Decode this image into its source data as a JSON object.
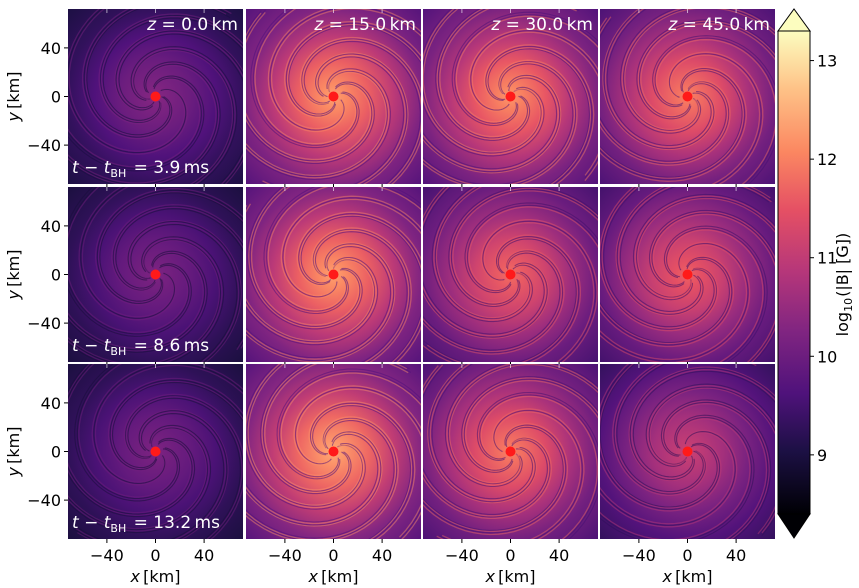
{
  "chart_data": {
    "type": "heatmap",
    "description_grid": "3x4 panels of magnetic field strength maps",
    "x_axis": {
      "label_var": "x",
      "label_unit": "[km]",
      "ticks": [
        -40,
        0,
        40
      ],
      "range": [
        -72,
        72
      ]
    },
    "y_axis": {
      "label_var": "y",
      "label_unit": "[km]",
      "ticks": [
        40,
        0,
        -40
      ],
      "range": [
        -72,
        72
      ]
    },
    "columns": [
      {
        "z_label": "z = 0.0 km",
        "z_value": 0.0
      },
      {
        "z_label": "z = 15.0 km",
        "z_value": 15.0
      },
      {
        "z_label": "z = 30.0 km",
        "z_value": 30.0
      },
      {
        "z_label": "z = 45.0 km",
        "z_value": 45.0
      }
    ],
    "rows": [
      {
        "t_label": "t − t_BH = 3.9 ms",
        "t_value": 3.9
      },
      {
        "t_label": "t − t_BH = 8.6 ms",
        "t_value": 8.6
      },
      {
        "t_label": "t − t_BH = 13.2 ms",
        "t_value": 13.2
      }
    ],
    "panel_brightness": [
      [
        0.35,
        0.72,
        0.7,
        0.66
      ],
      [
        0.33,
        0.72,
        0.62,
        0.6
      ],
      [
        0.33,
        0.74,
        0.66,
        0.5
      ]
    ],
    "colorbar": {
      "label": "log10(|B| [G])",
      "ticks": [
        9,
        10,
        11,
        12,
        13
      ],
      "range": [
        8.4,
        13.3
      ],
      "colormap": "magma"
    },
    "marker": {
      "color": "#ff1a1a",
      "position_km": [
        0,
        0
      ]
    }
  },
  "labels": {
    "z_prefix": "z",
    "eq": "=",
    "z_values": [
      "0.0",
      "15.0",
      "30.0",
      "45.0"
    ],
    "z_unit": "km",
    "t_prefix": "t − t",
    "t_sub": "BH",
    "t_values": [
      "3.9",
      "8.6",
      "13.2"
    ],
    "t_unit": "ms",
    "x_var": "x",
    "y_var": "y",
    "unit": "[km]",
    "cb_log": "log",
    "cb_sub": "10",
    "cb_rest": "(|B| [G])"
  }
}
